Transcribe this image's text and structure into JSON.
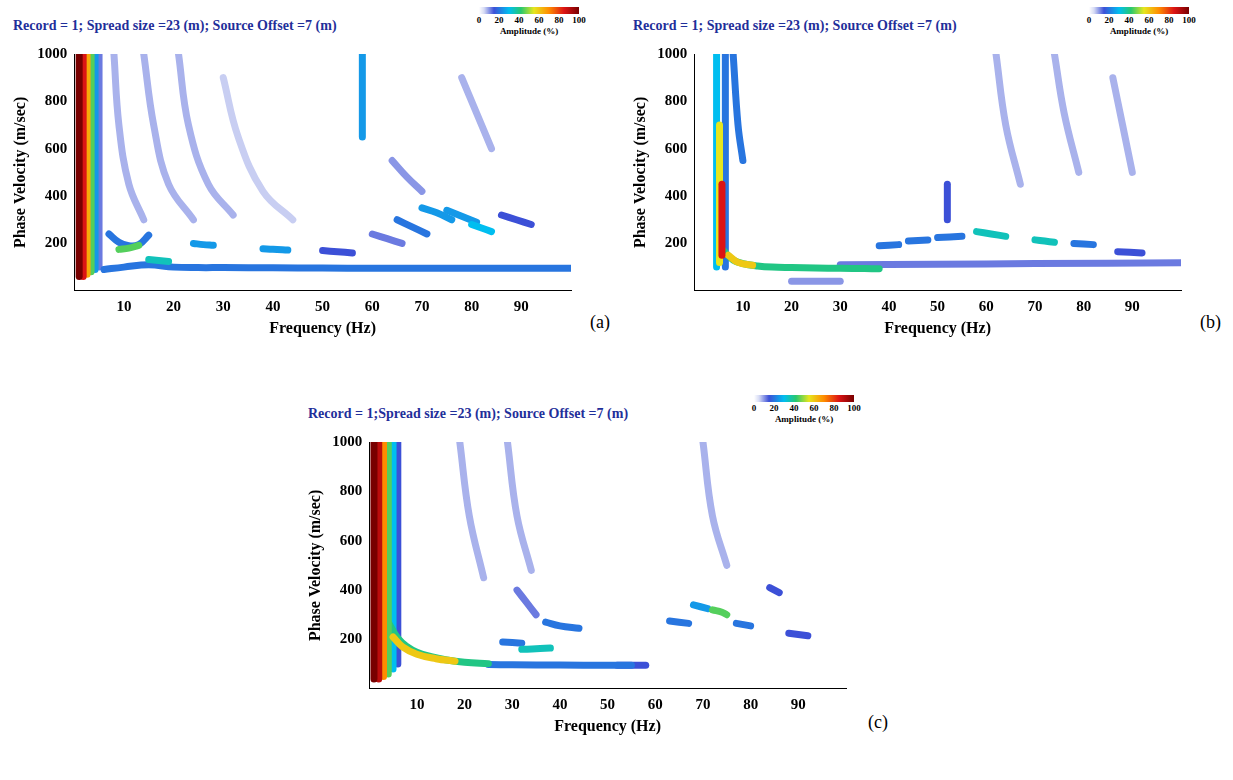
{
  "chart_data": [
    {
      "type": "heatmap",
      "panel_label": "(a)",
      "title": "Record = 1; Spread size =23 (m); Source Offset =7 (m)",
      "x_label": "Frequency (Hz)",
      "y_label": "Phase Velocity (m/sec)",
      "xlim": [
        0,
        100
      ],
      "ylim": [
        0,
        1000
      ],
      "xticks": [
        10,
        20,
        30,
        40,
        50,
        60,
        70,
        80,
        90
      ],
      "yticks": [
        200,
        400,
        600,
        800,
        1000
      ],
      "colorbar": {
        "label": "Amplitude (%)",
        "range": [
          0,
          100
        ],
        "ticks": [
          0,
          20,
          40,
          60,
          80,
          100
        ]
      },
      "ridges": [
        {
          "amplitude": 100,
          "x": [
            1,
            1
          ],
          "y": [
            60,
            1000
          ]
        },
        {
          "amplitude": 85,
          "x": [
            1.8,
            1.8
          ],
          "y": [
            60,
            1000
          ]
        },
        {
          "amplitude": 65,
          "x": [
            2.6,
            2.6
          ],
          "y": [
            70,
            1000
          ]
        },
        {
          "amplitude": 45,
          "x": [
            3.4,
            3.4
          ],
          "y": [
            80,
            1000
          ]
        },
        {
          "amplitude": 25,
          "x": [
            4.2,
            4.2
          ],
          "y": [
            90,
            1000
          ]
        },
        {
          "amplitude": 12,
          "x": [
            5,
            5
          ],
          "y": [
            100,
            1000
          ]
        },
        {
          "amplitude": 8,
          "x": [
            8,
            9,
            11,
            14
          ],
          "y": [
            1000,
            700,
            450,
            300
          ]
        },
        {
          "amplitude": 8,
          "x": [
            14,
            16,
            19,
            24
          ],
          "y": [
            1000,
            700,
            450,
            300
          ]
        },
        {
          "amplitude": 8,
          "x": [
            21,
            23,
            27,
            32
          ],
          "y": [
            1000,
            700,
            450,
            320
          ]
        },
        {
          "amplitude": 6,
          "x": [
            30,
            33,
            38,
            44
          ],
          "y": [
            900,
            650,
            420,
            300
          ]
        },
        {
          "amplitude": 20,
          "x": [
            7,
            9,
            11,
            13,
            15
          ],
          "y": [
            240,
            205,
            190,
            195,
            235
          ]
        },
        {
          "amplitude": 45,
          "x": [
            9,
            11,
            13
          ],
          "y": [
            175,
            180,
            192
          ]
        },
        {
          "amplitude": 35,
          "x": [
            15,
            17,
            19
          ],
          "y": [
            132,
            128,
            124
          ]
        },
        {
          "amplitude": 20,
          "x": [
            6,
            10,
            15,
            20,
            25,
            30,
            40,
            50,
            60,
            70,
            80,
            90,
            100
          ],
          "y": [
            90,
            100,
            110,
            100,
            98,
            98,
            97,
            96,
            95,
            95,
            95,
            95,
            95
          ]
        },
        {
          "amplitude": 25,
          "x": [
            24,
            26,
            28
          ],
          "y": [
            200,
            195,
            192
          ]
        },
        {
          "amplitude": 25,
          "x": [
            38,
            40,
            43
          ],
          "y": [
            178,
            175,
            172
          ]
        },
        {
          "amplitude": 15,
          "x": [
            50,
            53,
            56
          ],
          "y": [
            170,
            165,
            160
          ]
        },
        {
          "amplitude": 25,
          "x": [
            58,
            58
          ],
          "y": [
            650,
            1000
          ]
        },
        {
          "amplitude": 12,
          "x": [
            60,
            63,
            66
          ],
          "y": [
            240,
            220,
            200
          ]
        },
        {
          "amplitude": 20,
          "x": [
            65,
            68,
            71
          ],
          "y": [
            300,
            270,
            240
          ]
        },
        {
          "amplitude": 25,
          "x": [
            70,
            73,
            76
          ],
          "y": [
            350,
            330,
            300
          ]
        },
        {
          "amplitude": 25,
          "x": [
            75,
            78,
            81
          ],
          "y": [
            340,
            315,
            290
          ]
        },
        {
          "amplitude": 30,
          "x": [
            80,
            82,
            84
          ],
          "y": [
            280,
            265,
            250
          ]
        },
        {
          "amplitude": 15,
          "x": [
            86,
            89,
            92
          ],
          "y": [
            320,
            300,
            280
          ]
        },
        {
          "amplitude": 10,
          "x": [
            64,
            67,
            70
          ],
          "y": [
            550,
            480,
            420
          ]
        },
        {
          "amplitude": 8,
          "x": [
            78,
            81,
            84
          ],
          "y": [
            900,
            750,
            600
          ]
        }
      ]
    },
    {
      "type": "heatmap",
      "panel_label": "(b)",
      "title": "Record = 1; Spread size =23 (m); Source Offset =7 (m)",
      "x_label": "Frequency (Hz)",
      "y_label": "Phase Velocity (m/sec)",
      "xlim": [
        0,
        100
      ],
      "ylim": [
        0,
        1000
      ],
      "xticks": [
        10,
        20,
        30,
        40,
        50,
        60,
        70,
        80,
        90
      ],
      "yticks": [
        200,
        400,
        600,
        800,
        1000
      ],
      "colorbar": {
        "label": "Amplitude (%)",
        "range": [
          0,
          100
        ],
        "ticks": [
          0,
          20,
          40,
          60,
          80,
          100
        ]
      },
      "ridges": [
        {
          "amplitude": 30,
          "x": [
            4.6,
            4.6
          ],
          "y": [
            100,
            1000
          ]
        },
        {
          "amplitude": 55,
          "x": [
            5.2,
            5.2
          ],
          "y": [
            120,
            700
          ]
        },
        {
          "amplitude": 85,
          "x": [
            5.7,
            5.7
          ],
          "y": [
            150,
            450
          ]
        },
        {
          "amplitude": 20,
          "x": [
            6.4,
            6.4
          ],
          "y": [
            100,
            1000
          ]
        },
        {
          "amplitude": 20,
          "x": [
            8,
            9,
            10
          ],
          "y": [
            1000,
            700,
            550
          ]
        },
        {
          "amplitude": 40,
          "x": [
            6,
            8,
            10,
            13,
            16,
            20,
            25,
            30,
            35,
            38
          ],
          "y": [
            170,
            130,
            115,
            105,
            100,
            98,
            96,
            95,
            94,
            93
          ]
        },
        {
          "amplitude": 60,
          "x": [
            7,
            9,
            12
          ],
          "y": [
            150,
            120,
            108
          ]
        },
        {
          "amplitude": 10,
          "x": [
            20,
            25,
            30
          ],
          "y": [
            40,
            40,
            40
          ]
        },
        {
          "amplitude": 12,
          "x": [
            30,
            50,
            70,
            100
          ],
          "y": [
            110,
            112,
            115,
            118
          ]
        },
        {
          "amplitude": 20,
          "x": [
            38,
            42
          ],
          "y": [
            190,
            195
          ]
        },
        {
          "amplitude": 20,
          "x": [
            44,
            48
          ],
          "y": [
            210,
            215
          ]
        },
        {
          "amplitude": 15,
          "x": [
            52,
            52
          ],
          "y": [
            300,
            450
          ]
        },
        {
          "amplitude": 20,
          "x": [
            50,
            55
          ],
          "y": [
            225,
            230
          ]
        },
        {
          "amplitude": 35,
          "x": [
            58,
            61,
            64
          ],
          "y": [
            250,
            240,
            230
          ]
        },
        {
          "amplitude": 35,
          "x": [
            70,
            72,
            74
          ],
          "y": [
            215,
            210,
            205
          ]
        },
        {
          "amplitude": 20,
          "x": [
            78,
            82
          ],
          "y": [
            200,
            195
          ]
        },
        {
          "amplitude": 15,
          "x": [
            87,
            92
          ],
          "y": [
            165,
            160
          ]
        },
        {
          "amplitude": 8,
          "x": [
            62,
            64,
            67
          ],
          "y": [
            1000,
            700,
            450
          ]
        },
        {
          "amplitude": 8,
          "x": [
            74,
            76,
            79
          ],
          "y": [
            1000,
            750,
            500
          ]
        },
        {
          "amplitude": 8,
          "x": [
            86,
            88,
            90
          ],
          "y": [
            900,
            700,
            500
          ]
        }
      ]
    },
    {
      "type": "heatmap",
      "panel_label": "(c)",
      "title": "Record = 1;Spread size =23 (m); Source Offset =7 (m)",
      "x_label": "Frequency (Hz)",
      "y_label": "Phase Velocity (m/sec)",
      "xlim": [
        0,
        100
      ],
      "ylim": [
        0,
        1000
      ],
      "xticks": [
        10,
        20,
        30,
        40,
        50,
        60,
        70,
        80,
        90
      ],
      "yticks": [
        200,
        400,
        600,
        800,
        1000
      ],
      "colorbar": {
        "label": "Amplitude (%)",
        "range": [
          0,
          100
        ],
        "ticks": [
          0,
          20,
          40,
          60,
          80,
          100
        ]
      },
      "ridges": [
        {
          "amplitude": 100,
          "x": [
            1,
            1
          ],
          "y": [
            40,
            1000
          ]
        },
        {
          "amplitude": 90,
          "x": [
            2,
            2
          ],
          "y": [
            40,
            1000
          ]
        },
        {
          "amplitude": 70,
          "x": [
            3,
            3
          ],
          "y": [
            50,
            1000
          ]
        },
        {
          "amplitude": 45,
          "x": [
            4,
            4
          ],
          "y": [
            60,
            1000
          ]
        },
        {
          "amplitude": 30,
          "x": [
            5,
            5
          ],
          "y": [
            80,
            1000
          ]
        },
        {
          "amplitude": 15,
          "x": [
            6,
            6
          ],
          "y": [
            100,
            1000
          ]
        },
        {
          "amplitude": 40,
          "x": [
            4,
            6,
            8,
            10,
            13,
            16,
            20,
            25
          ],
          "y": [
            270,
            205,
            170,
            148,
            130,
            118,
            108,
            102
          ]
        },
        {
          "amplitude": 60,
          "x": [
            5,
            7,
            10,
            14,
            18
          ],
          "y": [
            210,
            170,
            140,
            122,
            112
          ]
        },
        {
          "amplitude": 20,
          "x": [
            25,
            30,
            40,
            50,
            55
          ],
          "y": [
            98,
            97,
            96,
            95,
            95
          ]
        },
        {
          "amplitude": 20,
          "x": [
            28,
            32
          ],
          "y": [
            190,
            185
          ]
        },
        {
          "amplitude": 35,
          "x": [
            32,
            35,
            38
          ],
          "y": [
            160,
            162,
            165
          ]
        },
        {
          "amplitude": 20,
          "x": [
            37,
            40,
            44
          ],
          "y": [
            270,
            255,
            245
          ]
        },
        {
          "amplitude": 12,
          "x": [
            31,
            33,
            35
          ],
          "y": [
            400,
            350,
            300
          ]
        },
        {
          "amplitude": 15,
          "x": [
            52,
            58
          ],
          "y": [
            95,
            95
          ]
        },
        {
          "amplitude": 20,
          "x": [
            63,
            67
          ],
          "y": [
            275,
            265
          ]
        },
        {
          "amplitude": 25,
          "x": [
            68,
            71
          ],
          "y": [
            340,
            325
          ]
        },
        {
          "amplitude": 45,
          "x": [
            72,
            74,
            75
          ],
          "y": [
            320,
            310,
            300
          ]
        },
        {
          "amplitude": 20,
          "x": [
            77,
            80
          ],
          "y": [
            265,
            255
          ]
        },
        {
          "amplitude": 15,
          "x": [
            84,
            86
          ],
          "y": [
            410,
            390
          ]
        },
        {
          "amplitude": 15,
          "x": [
            88,
            92
          ],
          "y": [
            225,
            215
          ]
        },
        {
          "amplitude": 8,
          "x": [
            19,
            21,
            24
          ],
          "y": [
            1000,
            700,
            450
          ]
        },
        {
          "amplitude": 8,
          "x": [
            29,
            31,
            34
          ],
          "y": [
            1000,
            700,
            480
          ]
        },
        {
          "amplitude": 8,
          "x": [
            70,
            72,
            75
          ],
          "y": [
            1000,
            700,
            500
          ]
        }
      ]
    }
  ]
}
